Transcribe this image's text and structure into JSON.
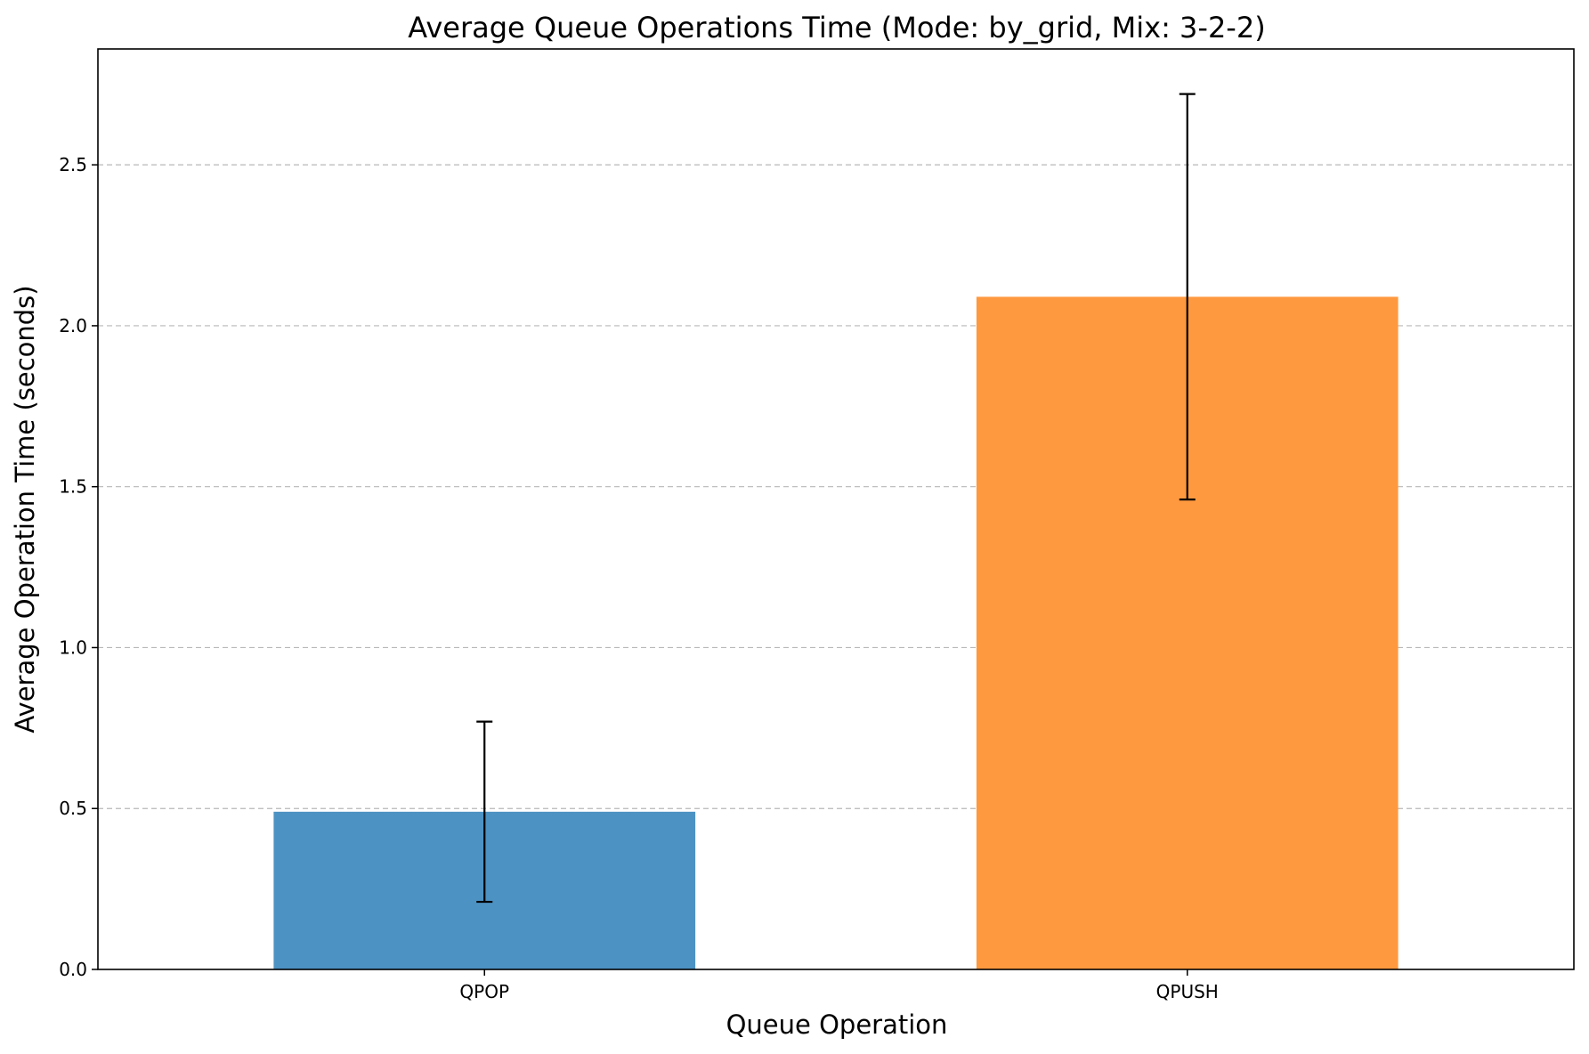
{
  "chart_data": {
    "type": "bar",
    "title": "Average Queue Operations Time (Mode: by_grid, Mix: 3-2-2)",
    "xlabel": "Queue Operation",
    "ylabel": "Average Operation Time (seconds)",
    "categories": [
      "QPOP",
      "QPUSH"
    ],
    "values": [
      0.49,
      2.09
    ],
    "error_low": [
      0.21,
      1.46
    ],
    "error_high": [
      0.77,
      2.72
    ],
    "colors": [
      "#4c92c3",
      "#ff993f"
    ],
    "ylim": [
      0,
      2.86
    ],
    "yticks": [
      0.0,
      0.5,
      1.0,
      1.5,
      2.0,
      2.5
    ],
    "ytick_labels": [
      "0.0",
      "0.5",
      "1.0",
      "1.5",
      "2.0",
      "2.5"
    ],
    "grid": "y-dashed",
    "legend": "none"
  }
}
